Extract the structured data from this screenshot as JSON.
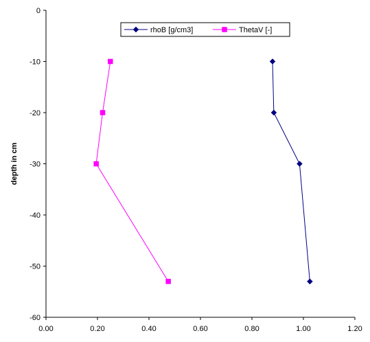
{
  "chart_data": {
    "type": "line",
    "xlabel": "",
    "ylabel": "depth in cm",
    "xlim": [
      0,
      1.2
    ],
    "ylim": [
      -60,
      0
    ],
    "x_ticks": [
      "0.00",
      "0.20",
      "0.40",
      "0.60",
      "0.80",
      "1.00",
      "1.20"
    ],
    "y_ticks": [
      "0",
      "-10",
      "-20",
      "-30",
      "-40",
      "-50",
      "-60"
    ],
    "grid": false,
    "legend_position": "top-center",
    "series": [
      {
        "name": "rhoB [g/cm3]",
        "color": "#000080",
        "marker": "diamond",
        "x": [
          0.88,
          0.885,
          0.985,
          1.025
        ],
        "y": [
          -10,
          -20,
          -30,
          -53
        ]
      },
      {
        "name": "ThetaV [-]",
        "color": "#ff00ff",
        "marker": "square",
        "x": [
          0.25,
          0.22,
          0.195,
          0.475
        ],
        "y": [
          -10,
          -20,
          -30,
          -53
        ]
      }
    ]
  }
}
